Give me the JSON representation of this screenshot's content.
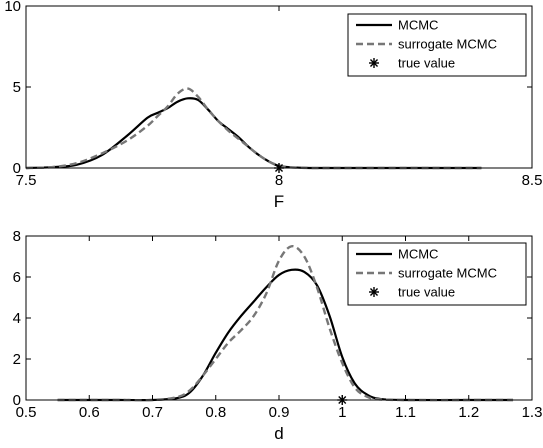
{
  "chart_data": [
    {
      "type": "line",
      "xlabel": "F",
      "ylabel": "",
      "xlim": [
        7.5,
        8.5
      ],
      "ylim": [
        0,
        10
      ],
      "x_ticks": [
        "7.5",
        "8",
        "8.5"
      ],
      "y_ticks": [
        "0",
        "5",
        "10"
      ],
      "grid": false,
      "legend_position": "top-right",
      "series": [
        {
          "name": "MCMC",
          "color": "#000000",
          "style": "solid",
          "x": [
            7.5,
            7.55,
            7.6,
            7.65,
            7.7,
            7.74,
            7.76,
            7.78,
            7.8,
            7.82,
            7.84,
            7.86,
            7.88,
            7.9,
            7.92,
            7.94,
            7.96,
            7.98,
            8.0,
            8.02,
            8.04,
            8.06,
            8.1,
            8.2,
            8.3,
            8.4
          ],
          "y": [
            0.0,
            0.05,
            0.2,
            0.8,
            2.0,
            3.1,
            3.4,
            3.7,
            4.1,
            4.3,
            4.2,
            3.6,
            2.9,
            2.4,
            1.9,
            1.3,
            0.8,
            0.4,
            0.12,
            0.05,
            0.02,
            0.0,
            0.0,
            0.0,
            0.0,
            0.0
          ]
        },
        {
          "name": "surrogate MCMC",
          "color": "#777777",
          "style": "dashed",
          "x": [
            7.5,
            7.55,
            7.6,
            7.65,
            7.7,
            7.74,
            7.76,
            7.78,
            7.8,
            7.82,
            7.84,
            7.86,
            7.88,
            7.9,
            7.92,
            7.94,
            7.96,
            7.98,
            8.0,
            8.02,
            8.04,
            8.06,
            8.1,
            8.2,
            8.3,
            8.4
          ],
          "y": [
            0.0,
            0.05,
            0.3,
            0.9,
            1.7,
            2.6,
            3.2,
            3.8,
            4.6,
            4.9,
            4.4,
            3.6,
            2.9,
            2.3,
            1.8,
            1.3,
            0.8,
            0.4,
            0.15,
            0.05,
            0.02,
            0.0,
            0.0,
            0.0,
            0.0,
            0.0
          ]
        },
        {
          "name": "true value",
          "color": "#000000",
          "style": "marker",
          "marker": "asterisk",
          "x": [
            8.0
          ],
          "y": [
            0.0
          ]
        }
      ]
    },
    {
      "type": "line",
      "xlabel": "d",
      "ylabel": "",
      "xlim": [
        0.5,
        1.3
      ],
      "ylim": [
        0,
        8
      ],
      "x_ticks": [
        "0.5",
        "0.6",
        "0.7",
        "0.8",
        "0.9",
        "1",
        "1.1",
        "1.2",
        "1.3"
      ],
      "y_ticks": [
        "0",
        "2",
        "4",
        "6",
        "8"
      ],
      "grid": false,
      "legend_position": "top-right",
      "series": [
        {
          "name": "MCMC",
          "color": "#000000",
          "style": "solid",
          "x": [
            0.55,
            0.6,
            0.65,
            0.7,
            0.74,
            0.76,
            0.78,
            0.8,
            0.82,
            0.84,
            0.86,
            0.88,
            0.9,
            0.92,
            0.94,
            0.96,
            0.98,
            1.0,
            1.02,
            1.04,
            1.06,
            1.1,
            1.2,
            1.27
          ],
          "y": [
            0.0,
            0.0,
            0.0,
            0.0,
            0.1,
            0.4,
            1.2,
            2.3,
            3.3,
            4.1,
            4.8,
            5.5,
            6.1,
            6.35,
            6.25,
            5.6,
            4.1,
            2.1,
            0.8,
            0.25,
            0.05,
            0.0,
            0.0,
            0.0
          ]
        },
        {
          "name": "surrogate MCMC",
          "color": "#777777",
          "style": "dashed",
          "x": [
            0.55,
            0.6,
            0.65,
            0.7,
            0.74,
            0.76,
            0.78,
            0.8,
            0.82,
            0.84,
            0.86,
            0.88,
            0.9,
            0.92,
            0.94,
            0.96,
            0.98,
            1.0,
            1.02,
            1.04,
            1.06,
            1.1,
            1.2,
            1.27
          ],
          "y": [
            0.0,
            0.0,
            0.0,
            0.0,
            0.15,
            0.5,
            1.2,
            2.0,
            2.8,
            3.4,
            4.1,
            5.2,
            6.8,
            7.5,
            7.0,
            5.5,
            3.5,
            1.8,
            0.6,
            0.15,
            0.03,
            0.0,
            0.0,
            0.0
          ]
        },
        {
          "name": "true value",
          "color": "#000000",
          "style": "marker",
          "marker": "asterisk",
          "x": [
            1.0
          ],
          "y": [
            0.0
          ]
        }
      ]
    }
  ]
}
